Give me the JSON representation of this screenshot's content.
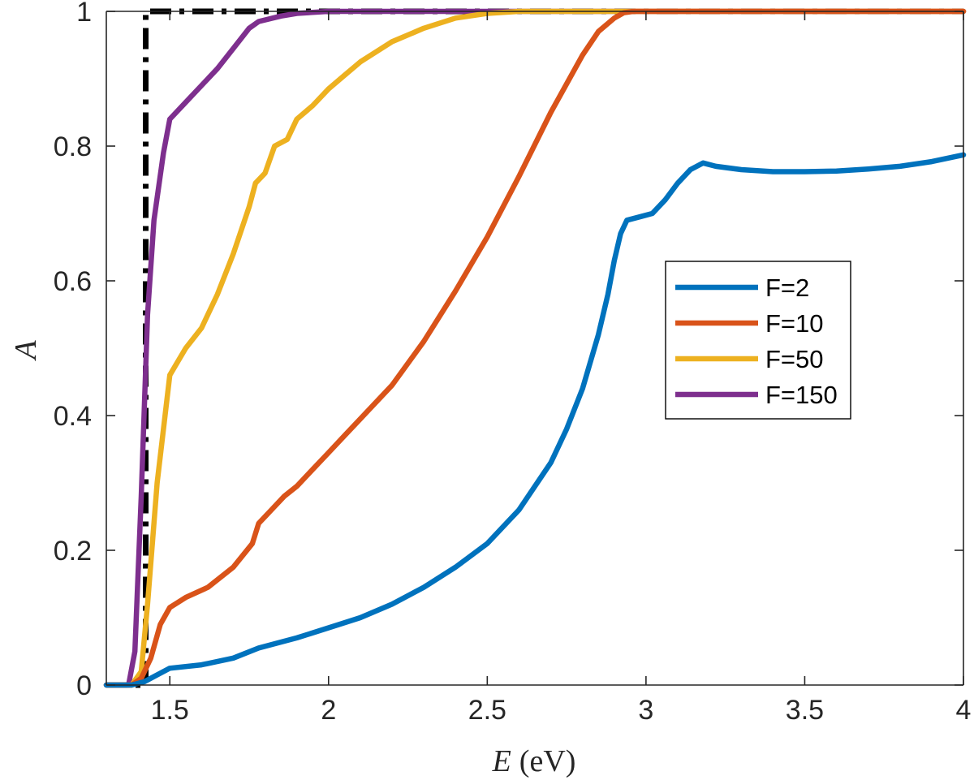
{
  "chart_data": {
    "type": "line",
    "title": "",
    "xlabel_var": "E",
    "xlabel_unit": "(eV)",
    "ylabel": "A",
    "xlim": [
      1.3,
      4.0
    ],
    "ylim": [
      0,
      1
    ],
    "xticks": [
      1.5,
      2,
      2.5,
      3,
      3.5,
      4
    ],
    "xtick_labels": [
      "1.5",
      "2",
      "2.5",
      "3",
      "3.5",
      "4"
    ],
    "yticks": [
      0,
      0.2,
      0.4,
      0.6,
      0.8,
      1
    ],
    "ytick_labels": [
      "0",
      "0.2",
      "0.4",
      "0.6",
      "0.8",
      "1"
    ],
    "grid": false,
    "legend_position": "right",
    "series": [
      {
        "name": "F=2",
        "color": "#0072BD",
        "style": "solid",
        "x": [
          1.3,
          1.38,
          1.42,
          1.46,
          1.5,
          1.6,
          1.7,
          1.78,
          1.9,
          2.0,
          2.1,
          2.2,
          2.3,
          2.4,
          2.5,
          2.6,
          2.7,
          2.75,
          2.8,
          2.85,
          2.88,
          2.9,
          2.92,
          2.94,
          2.98,
          3.02,
          3.06,
          3.1,
          3.14,
          3.18,
          3.22,
          3.3,
          3.4,
          3.5,
          3.6,
          3.7,
          3.8,
          3.9,
          4.0
        ],
        "y": [
          0.0,
          0.0,
          0.005,
          0.015,
          0.025,
          0.03,
          0.04,
          0.055,
          0.07,
          0.085,
          0.1,
          0.12,
          0.145,
          0.175,
          0.21,
          0.26,
          0.33,
          0.38,
          0.44,
          0.52,
          0.58,
          0.63,
          0.67,
          0.69,
          0.695,
          0.7,
          0.72,
          0.745,
          0.765,
          0.775,
          0.77,
          0.765,
          0.762,
          0.762,
          0.763,
          0.766,
          0.77,
          0.777,
          0.787
        ]
      },
      {
        "name": "F=10",
        "color": "#D95319",
        "style": "solid",
        "x": [
          1.3,
          1.38,
          1.41,
          1.44,
          1.47,
          1.5,
          1.55,
          1.62,
          1.7,
          1.76,
          1.78,
          1.82,
          1.86,
          1.9,
          1.95,
          2.0,
          2.05,
          2.1,
          2.2,
          2.3,
          2.4,
          2.5,
          2.6,
          2.7,
          2.8,
          2.85,
          2.9,
          2.93,
          2.96,
          3.0,
          3.2,
          3.5,
          4.0
        ],
        "y": [
          0.0,
          0.0,
          0.01,
          0.04,
          0.09,
          0.115,
          0.13,
          0.145,
          0.175,
          0.21,
          0.24,
          0.26,
          0.28,
          0.295,
          0.32,
          0.345,
          0.37,
          0.395,
          0.445,
          0.51,
          0.585,
          0.665,
          0.755,
          0.85,
          0.935,
          0.97,
          0.99,
          0.998,
          1.0,
          1.0,
          1.0,
          1.0,
          1.0
        ]
      },
      {
        "name": "F=50",
        "color": "#EDB120",
        "style": "solid",
        "x": [
          1.3,
          1.38,
          1.41,
          1.43,
          1.46,
          1.5,
          1.55,
          1.6,
          1.65,
          1.7,
          1.75,
          1.77,
          1.8,
          1.83,
          1.87,
          1.9,
          1.95,
          2.0,
          2.05,
          2.1,
          2.2,
          2.3,
          2.4,
          2.5,
          2.6,
          2.7,
          3.0,
          3.5,
          4.0
        ],
        "y": [
          0.0,
          0.0,
          0.02,
          0.12,
          0.3,
          0.46,
          0.5,
          0.53,
          0.58,
          0.64,
          0.71,
          0.745,
          0.76,
          0.8,
          0.81,
          0.84,
          0.86,
          0.885,
          0.905,
          0.925,
          0.955,
          0.975,
          0.99,
          0.997,
          1.0,
          1.0,
          1.0,
          1.0,
          1.0
        ]
      },
      {
        "name": "F=150",
        "color": "#7E2F8E",
        "style": "solid",
        "x": [
          1.3,
          1.37,
          1.39,
          1.41,
          1.43,
          1.45,
          1.48,
          1.5,
          1.55,
          1.6,
          1.65,
          1.7,
          1.75,
          1.78,
          1.85,
          1.9,
          2.0,
          2.2,
          2.5,
          3.0,
          3.5,
          4.0
        ],
        "y": [
          0.0,
          0.0,
          0.05,
          0.28,
          0.55,
          0.69,
          0.79,
          0.84,
          0.865,
          0.89,
          0.915,
          0.945,
          0.975,
          0.985,
          0.993,
          0.997,
          1.0,
          1.0,
          1.0,
          1.0,
          1.0,
          1.0
        ]
      },
      {
        "name": "",
        "color": "#000000",
        "style": "dashdot",
        "x": [
          1.3,
          1.424,
          1.424,
          4.0
        ],
        "y": [
          0.0,
          0.0,
          1.0,
          1.0
        ]
      }
    ]
  }
}
